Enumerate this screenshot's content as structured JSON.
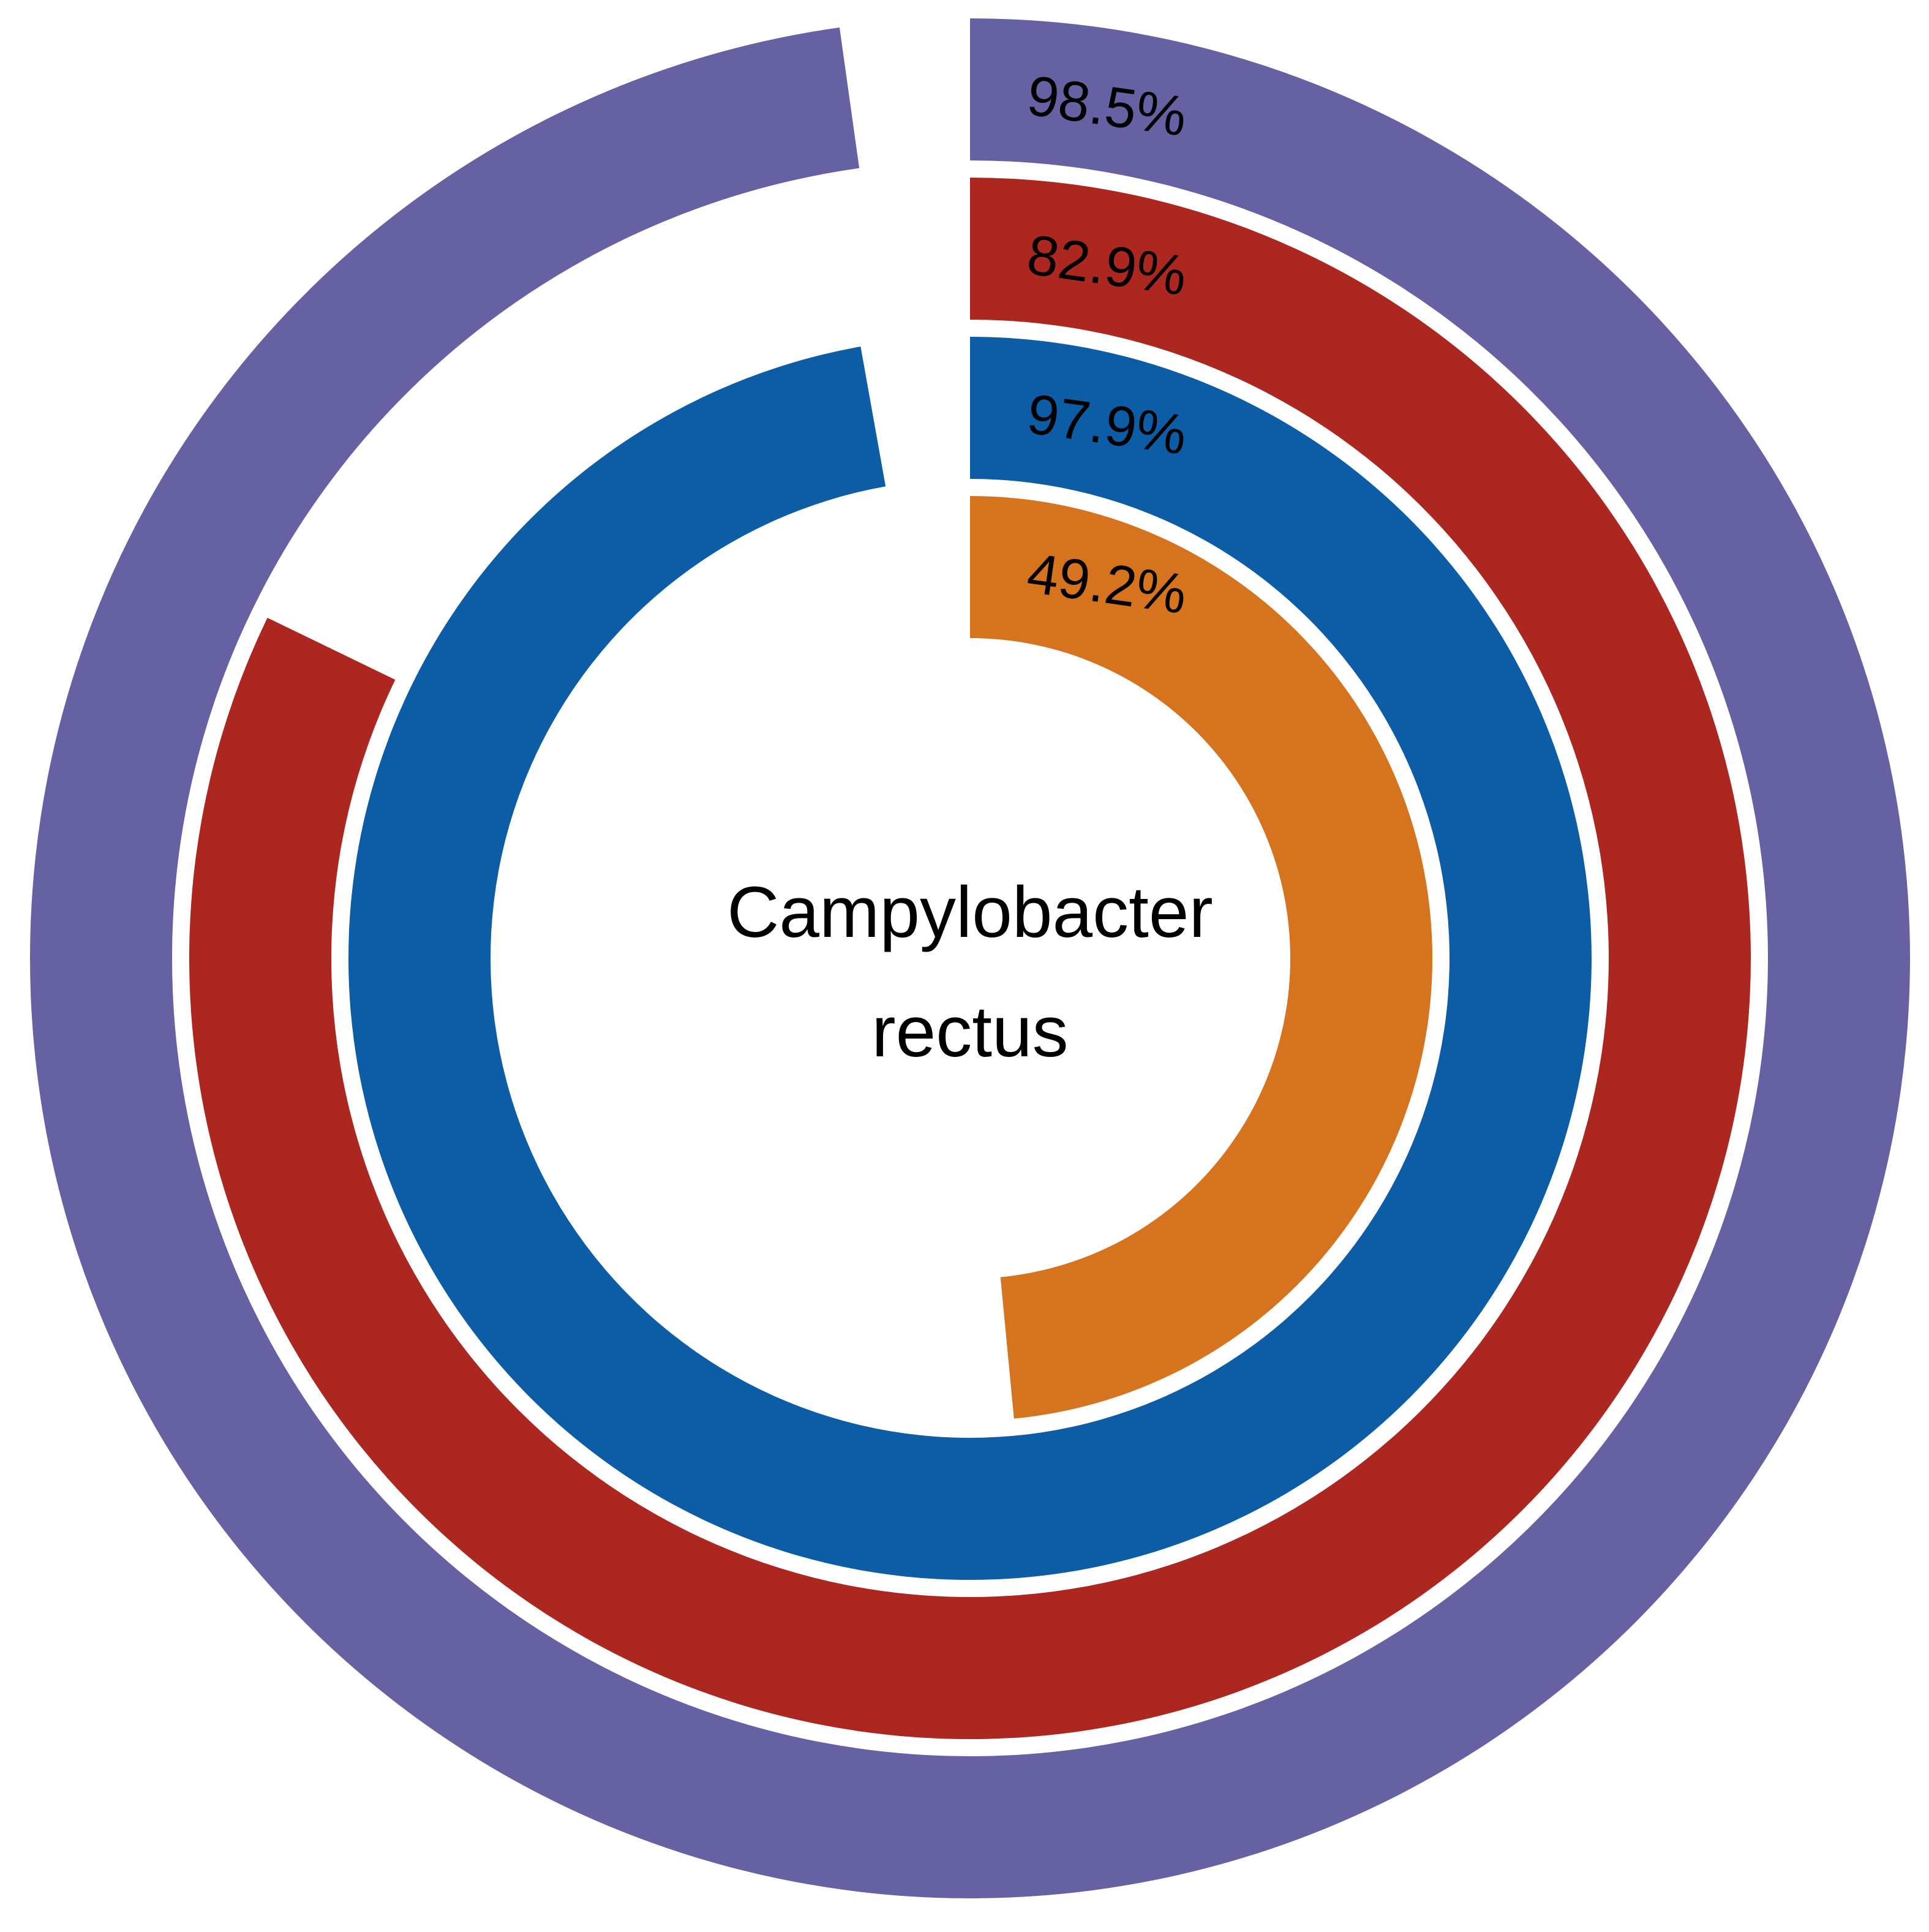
{
  "chart_data": {
    "type": "radial-bar",
    "center_label": [
      "Campylobacter",
      "rectus"
    ],
    "unit": "%",
    "max": 100,
    "series": [
      {
        "value": 98.5,
        "label": "98.5%",
        "color": "#6561A2"
      },
      {
        "value": 82.9,
        "label": "82.9%",
        "color": "#AB2720"
      },
      {
        "value": 97.9,
        "label": "97.9%",
        "color": "#0D5DA6"
      },
      {
        "value": 49.2,
        "label": "49.2%",
        "color": "#D6731F"
      }
    ],
    "start": "12 o'clock",
    "direction": "clockwise"
  }
}
